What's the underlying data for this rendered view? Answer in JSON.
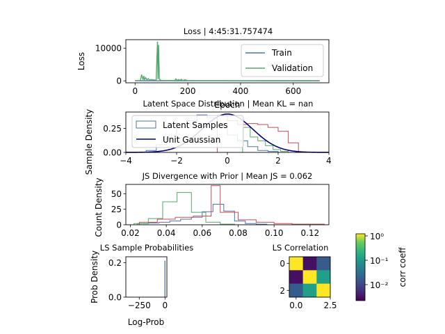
{
  "colors": {
    "blue": "#4c72b0",
    "green": "#55a868",
    "red": "#c44e52",
    "navy": "#000080"
  },
  "chart_data": [
    {
      "id": "loss",
      "type": "line",
      "title": "Loss | 4:45:31.757474",
      "xlabel": "Epoch",
      "ylabel": "Loss",
      "xlim": [
        -35,
        735
      ],
      "ylim": [
        -600,
        12600
      ],
      "xticks": [
        0,
        200,
        400,
        600
      ],
      "yticks": [
        0,
        10000
      ],
      "legend": {
        "placement": "upper right",
        "entries": [
          "Train",
          "Validation"
        ]
      },
      "series": [
        {
          "name": "Train",
          "color": "#4c72b0",
          "x": [
            0,
            20,
            40,
            60,
            80,
            100,
            150,
            200,
            300,
            400,
            500,
            600,
            700
          ],
          "y": [
            50,
            40,
            35,
            30,
            30,
            25,
            20,
            20,
            15,
            15,
            12,
            10,
            10
          ]
        },
        {
          "name": "Validation",
          "color": "#55a868",
          "x": [
            0,
            20,
            25,
            30,
            33,
            36,
            40,
            45,
            50,
            55,
            60,
            70,
            80,
            85,
            87,
            89,
            92,
            95,
            100,
            120,
            150,
            155,
            160,
            165,
            170,
            175,
            180,
            190,
            200,
            250,
            300,
            400,
            500,
            600,
            700
          ],
          "y": [
            100,
            100,
            1900,
            300,
            1500,
            300,
            1000,
            250,
            700,
            200,
            400,
            300,
            200,
            12000,
            500,
            11000,
            700,
            250,
            150,
            120,
            100,
            600,
            100,
            400,
            100,
            450,
            100,
            300,
            90,
            80,
            70,
            60,
            50,
            50,
            40
          ]
        }
      ]
    },
    {
      "id": "latent",
      "type": "histogram",
      "title": "Latent Space Distribution | Mean KL = nan",
      "xlabel": "",
      "ylabel": "Sample Density",
      "xlim": [
        -4,
        4
      ],
      "ylim": [
        0,
        0.42
      ],
      "xticks": [
        -4,
        -2,
        0,
        2,
        4
      ],
      "yticks": [
        0,
        0.25
      ],
      "legend": {
        "placement": "upper left",
        "entries": [
          "Latent Samples",
          "Unit Gaussian"
        ]
      },
      "series": [
        {
          "name": "Latent Samples",
          "color": "#4c72b0",
          "edges": [
            -3.2,
            -2.8,
            -2.4,
            -2.0,
            -1.6,
            -1.2,
            -0.8,
            -0.4,
            0.0,
            0.4,
            0.8,
            1.2,
            1.6,
            2.0
          ],
          "values": [
            0.02,
            0.08,
            0.15,
            0.26,
            0.33,
            0.39,
            0.36,
            0.29,
            0.18,
            0.12,
            0.06,
            0.02,
            0.01
          ]
        },
        {
          "color": "#55a868",
          "edges": [
            0.6,
            0.9,
            1.2,
            1.5,
            1.8,
            2.1,
            2.4
          ],
          "values": [
            0.26,
            0.16,
            0.12,
            0.07,
            0.03,
            0.01
          ]
        },
        {
          "color": "#c44e52",
          "edges": [
            -0.4,
            0.0,
            0.4,
            0.8,
            1.2,
            1.6,
            2.0,
            2.4,
            2.8
          ],
          "values": [
            0.38,
            0.33,
            0.29,
            0.3,
            0.29,
            0.26,
            0.22,
            0.1
          ]
        }
      ],
      "gaussian": {
        "name": "Unit Gaussian",
        "color": "#000080",
        "mean": 0,
        "std": 1
      }
    },
    {
      "id": "js",
      "type": "histogram",
      "title": "JS Divergence with Prior | Mean JS = 0.062",
      "xlabel": "",
      "ylabel": "Count Density",
      "xlim": [
        0.0175,
        0.1305
      ],
      "ylim": [
        0,
        65
      ],
      "xticks": [
        0.02,
        0.04,
        0.06,
        0.08,
        0.1,
        0.12
      ],
      "yticks": [
        0,
        25,
        50
      ],
      "series": [
        {
          "color": "#4c72b0",
          "edges": [
            0.024,
            0.03,
            0.036,
            0.042,
            0.048,
            0.054,
            0.06,
            0.066,
            0.072,
            0.078,
            0.084,
            0.09,
            0.096
          ],
          "values": [
            2,
            3,
            4,
            6,
            9,
            12,
            21,
            33,
            22,
            6,
            2,
            1
          ]
        },
        {
          "color": "#55a868",
          "edges": [
            0.022,
            0.03,
            0.038,
            0.046,
            0.054,
            0.062,
            0.07,
            0.078
          ],
          "values": [
            2,
            10,
            37,
            52,
            20,
            4,
            1
          ]
        },
        {
          "color": "#c44e52",
          "edges": [
            0.025,
            0.035,
            0.045,
            0.055,
            0.065,
            0.07,
            0.08,
            0.09,
            0.1,
            0.11,
            0.128
          ],
          "values": [
            4,
            9,
            12,
            14,
            63,
            20,
            8,
            4,
            2,
            1
          ]
        }
      ]
    },
    {
      "id": "lsprob",
      "type": "histogram",
      "title": "LS Sample Probabilities",
      "xlabel": "Log-Prob",
      "ylabel": "Prob Density",
      "xlim": [
        -380,
        18
      ],
      "ylim": [
        0,
        0.235
      ],
      "xticks": [
        -250,
        0
      ],
      "yticks": [
        0.0,
        0.2
      ],
      "series": [
        {
          "color": "#4c72b0",
          "edges": [
            -2,
            0
          ],
          "values": [
            0.21
          ]
        }
      ]
    },
    {
      "id": "lscorr",
      "type": "heatmap",
      "title": "LS Correlation",
      "xticks": [
        0.0,
        2.5
      ],
      "yticks": [
        0,
        2
      ],
      "values": [
        [
          1.0,
          0.004,
          0.02
        ],
        [
          0.004,
          1.0,
          0.12
        ],
        [
          0.02,
          0.12,
          1.0
        ]
      ],
      "colorbar": {
        "label": "corr coeff",
        "scale": "log",
        "range": [
          0.003,
          1.0
        ],
        "ticks": [
          "10⁰",
          "10⁻¹",
          "10⁻²"
        ],
        "cmap": "viridis"
      }
    }
  ]
}
